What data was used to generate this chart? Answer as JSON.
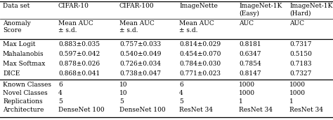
{
  "col_headers": [
    "Data set",
    "CIFAR-10",
    "CIFAR-100",
    "ImageNette",
    "ImageNet-1K\n(Easy)",
    "ImageNet-1K\n(Hard)"
  ],
  "subheaders": [
    "Anomaly\nScore",
    "Mean AUC\n± s.d.",
    "Mean AUC\n± s.d.",
    "Mean AUC\n± s.d.",
    "AUC",
    "AUC"
  ],
  "rows": [
    [
      "Max Logit",
      "0.883±0.035",
      "0.757±0.033",
      "0.814±0.029",
      "0.8181",
      "0.7317"
    ],
    [
      "Mahalanobis",
      "0.597±0.042",
      "0.540±0.049",
      "0.454±0.070",
      "0.6347",
      "0.5150"
    ],
    [
      "Max Softmax",
      "0.878±0.026",
      "0.726±0.034",
      "0.784±0.030",
      "0.7854",
      "0.7183"
    ],
    [
      "DICE",
      "0.868±0.041",
      "0.738±0.047",
      "0.771±0.023",
      "0.8147",
      "0.7327"
    ]
  ],
  "footer_rows": [
    [
      "Known Classes",
      "6",
      "10",
      "6",
      "1000",
      "1000"
    ],
    [
      "Novel Classes",
      "4",
      "10",
      "4",
      "1000",
      "1000"
    ],
    [
      "Replications",
      "5",
      "5",
      "5",
      "1",
      "1"
    ],
    [
      "Architecture",
      "DenseNet 100",
      "DenseNet 100",
      "ResNet 34",
      "ResNet 34",
      "ResNet 34"
    ]
  ],
  "col_xs_pts": [
    4,
    83,
    170,
    255,
    340,
    412
  ],
  "fontsize": 6.5,
  "background": "#ffffff",
  "line_color": "#000000",
  "thick_lw": 0.9,
  "thin_lw": 0.5
}
